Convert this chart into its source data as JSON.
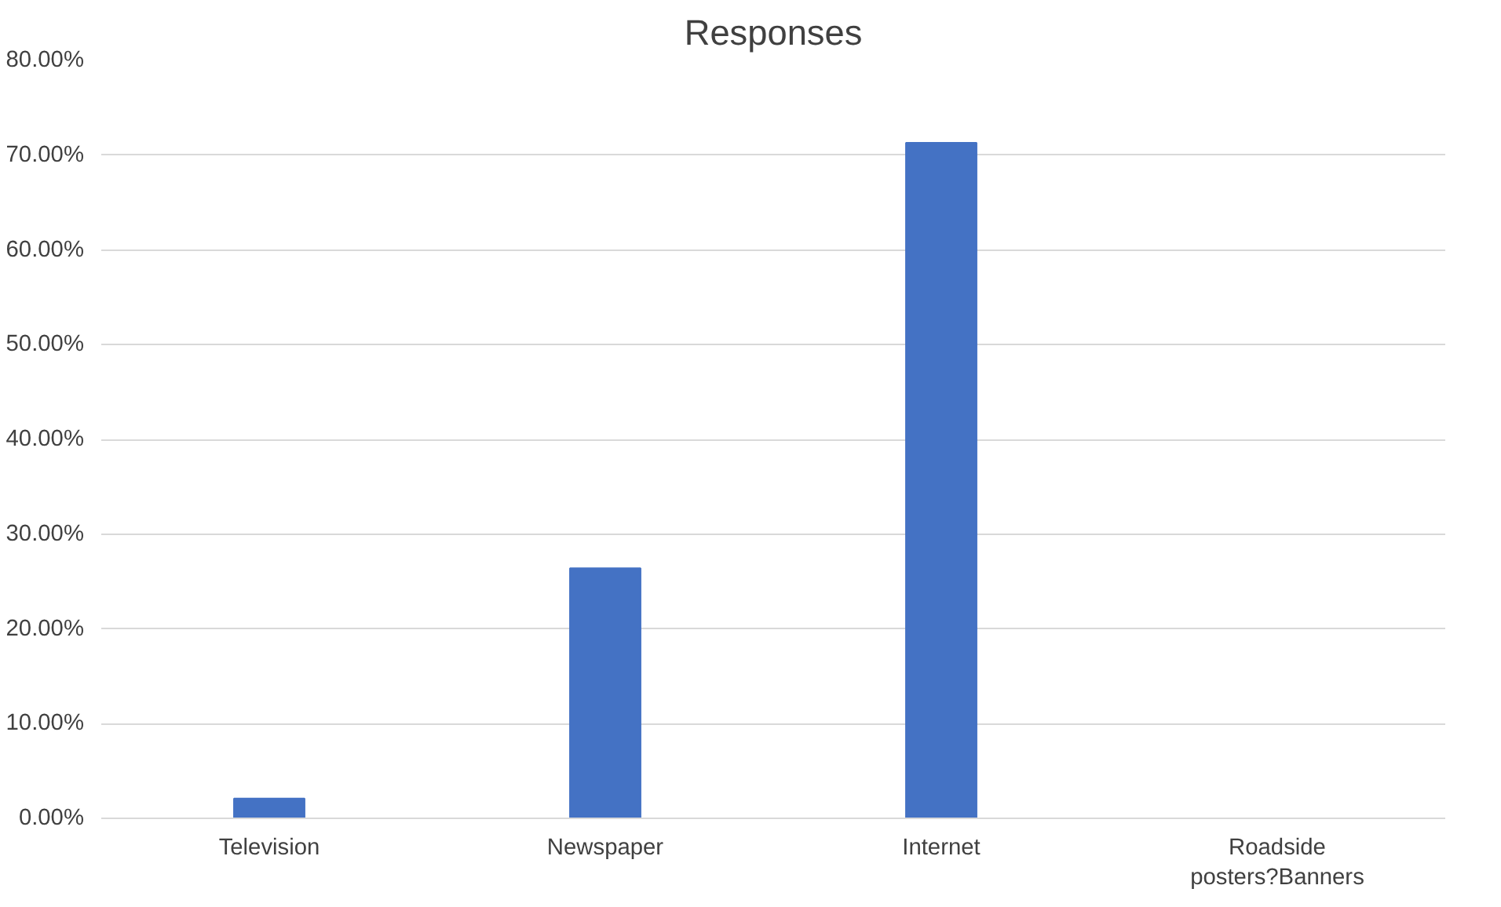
{
  "chart_data": {
    "type": "bar",
    "title": "Responses",
    "categories": [
      "Television",
      "Newspaper",
      "Internet",
      "Roadside\nposters?Banners"
    ],
    "values": [
      2.1,
      26.4,
      71.3,
      0
    ],
    "color": "#4472c4",
    "ylim": [
      0,
      80
    ],
    "yticks": [
      {
        "value": 0,
        "label": "0.00%"
      },
      {
        "value": 10,
        "label": "10.00%"
      },
      {
        "value": 20,
        "label": "20.00%"
      },
      {
        "value": 30,
        "label": "30.00%"
      },
      {
        "value": 40,
        "label": "40.00%"
      },
      {
        "value": 50,
        "label": "50.00%"
      },
      {
        "value": 60,
        "label": "60.00%"
      },
      {
        "value": 70,
        "label": "70.00%"
      },
      {
        "value": 80,
        "label": "80.00%"
      }
    ],
    "grid": "y"
  }
}
